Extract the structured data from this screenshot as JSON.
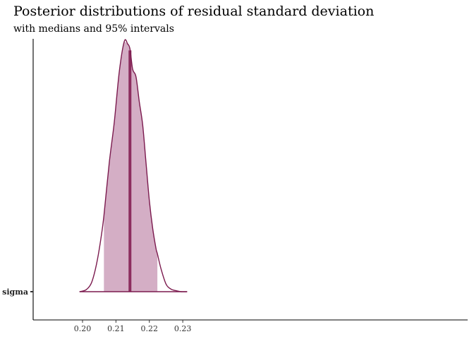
{
  "chart_data": {
    "type": "area",
    "title": "Posterior distributions of residual standard deviation",
    "subtitle": "with medians and 95% intervals",
    "xlabel": "",
    "ylabel": "",
    "xlim": [
      0.1955,
      0.2345
    ],
    "x_ticks": [
      0.2,
      0.21,
      0.22,
      0.23
    ],
    "x_tick_labels": [
      "0.20",
      "0.21",
      "0.22",
      "0.23"
    ],
    "y_categories": [
      "sigma"
    ],
    "grid": false,
    "legend": "none",
    "series": [
      {
        "parameter": "sigma",
        "median": 0.2142,
        "interval_95": [
          0.2064,
          0.2224
        ],
        "density_range": [
          0.1991,
          0.2313
        ],
        "density": {
          "x": [
            0.1991,
            0.201,
            0.2025,
            0.2035,
            0.2045,
            0.2055,
            0.2064,
            0.208,
            0.2095,
            0.211,
            0.2125,
            0.2135,
            0.2142,
            0.215,
            0.216,
            0.217,
            0.218,
            0.219,
            0.22,
            0.221,
            0.222,
            0.2224,
            0.2235,
            0.225,
            0.2265,
            0.228,
            0.2295,
            0.2313
          ],
          "y": [
            0.0,
            0.007,
            0.03,
            0.07,
            0.13,
            0.21,
            0.3,
            0.51,
            0.67,
            0.87,
            0.99,
            0.98,
            0.96,
            0.88,
            0.85,
            0.75,
            0.66,
            0.51,
            0.36,
            0.25,
            0.17,
            0.15,
            0.09,
            0.03,
            0.01,
            0.004,
            0.0,
            0.0
          ]
        }
      }
    ],
    "colors": {
      "interval_fill": "#d4aec5",
      "outline": "#7b1a4e",
      "median_line": "#8c2d5e",
      "axis": "#000000"
    }
  }
}
